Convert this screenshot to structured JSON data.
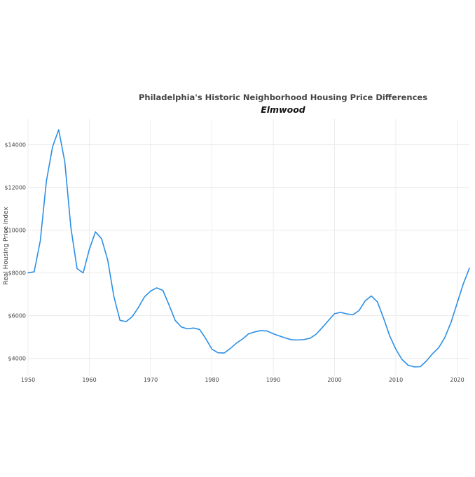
{
  "chart_data": {
    "type": "line",
    "title": "Philadelphia's Historic Neighborhood Housing Price Differences",
    "subtitle": "Elmwood",
    "xlabel": "",
    "ylabel": "Real Housing Price Index",
    "xlim": [
      1950,
      2022
    ],
    "ylim": [
      3200,
      15200
    ],
    "x_ticks": [
      1950,
      1960,
      1970,
      1980,
      1990,
      2000,
      2010,
      2020
    ],
    "x_tick_labels": [
      "1950",
      "1960",
      "1970",
      "1980",
      "1990",
      "2000",
      "2010",
      "2020"
    ],
    "y_ticks": [
      4000,
      6000,
      8000,
      10000,
      12000,
      14000
    ],
    "y_tick_labels": [
      "$4000",
      "$6000",
      "$8000",
      "$10000",
      "$12000",
      "$14000"
    ],
    "grid": true,
    "line_color": "#2b8fe5",
    "series": [
      {
        "x": [
          1950,
          1951,
          1952,
          1953,
          1954,
          1955,
          1956,
          1957,
          1958,
          1959,
          1960,
          1961,
          1962,
          1963,
          1964,
          1965,
          1966,
          1967,
          1968,
          1969,
          1970,
          1971,
          1972,
          1973,
          1974,
          1975,
          1976,
          1977,
          1978,
          1979,
          1980,
          1981,
          1982,
          1983,
          1984,
          1985,
          1986,
          1987,
          1988,
          1989,
          1990,
          1991,
          1992,
          1993,
          1994,
          1995,
          1996,
          1997,
          1998,
          1999,
          2000,
          2001,
          2002,
          2003,
          2004,
          2005,
          2006,
          2007,
          2008,
          2009,
          2010,
          2011,
          2012,
          2013,
          2014,
          2015,
          2016,
          2017,
          2018,
          2019,
          2020,
          2021,
          2022
        ],
        "values": [
          8000,
          8050,
          9500,
          12300,
          13900,
          14700,
          13200,
          10100,
          8200,
          8000,
          9100,
          9920,
          9600,
          8600,
          6900,
          5780,
          5720,
          5950,
          6380,
          6880,
          7150,
          7300,
          7180,
          6500,
          5780,
          5470,
          5380,
          5420,
          5350,
          4920,
          4430,
          4260,
          4250,
          4460,
          4710,
          4910,
          5150,
          5240,
          5300,
          5280,
          5150,
          5050,
          4950,
          4870,
          4860,
          4880,
          4940,
          5130,
          5440,
          5770,
          6090,
          6150,
          6080,
          6040,
          6240,
          6690,
          6920,
          6640,
          5880,
          5050,
          4430,
          3950,
          3680,
          3600,
          3610,
          3880,
          4220,
          4500,
          4980,
          5680,
          6580,
          7480,
          8220
        ]
      }
    ]
  }
}
